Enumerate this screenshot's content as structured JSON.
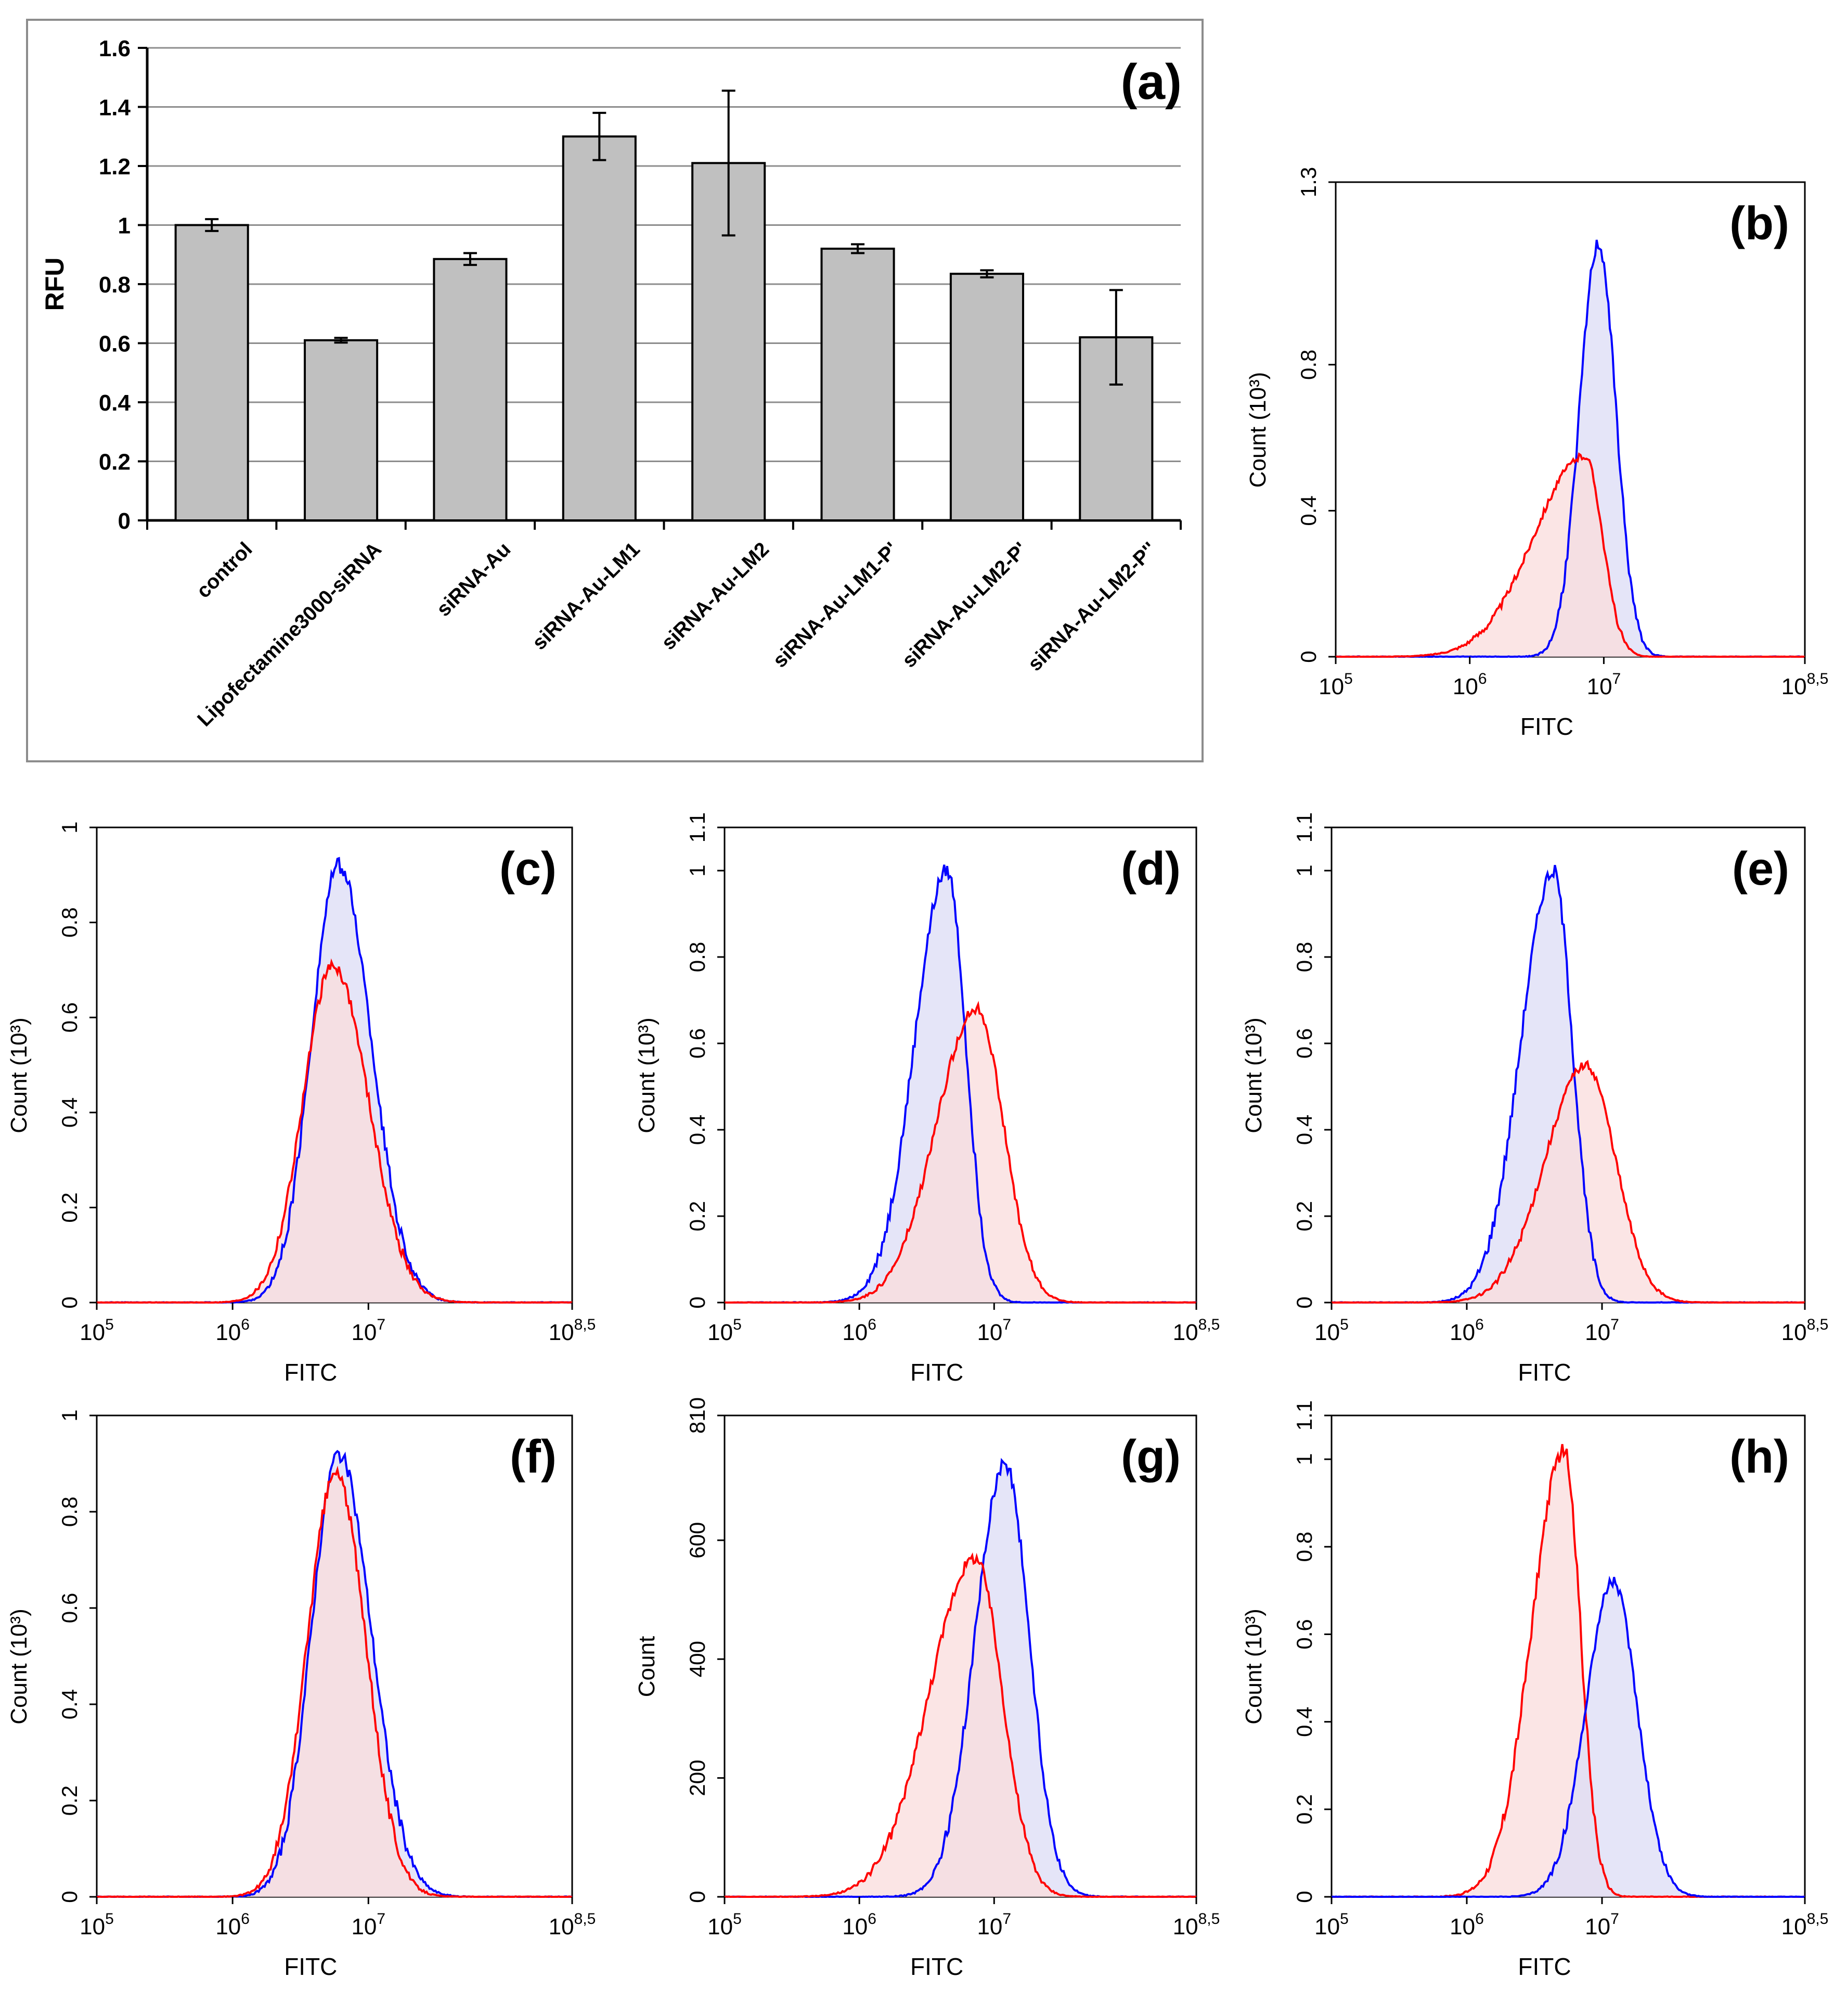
{
  "chart_data": [
    {
      "id": "a",
      "type": "bar",
      "panel_label": "(a)",
      "title": "",
      "ylabel": "RFU",
      "xlabel": "",
      "ylim": [
        0,
        1.6
      ],
      "yticks": [
        "0",
        "0.2",
        "0.4",
        "0.6",
        "0.8",
        "1",
        "1.2",
        "1.4",
        "1.6"
      ],
      "grid": true,
      "legend": "none",
      "bar_color": "#c0c0c0",
      "categories": [
        "control",
        "Lipofectamine3000-siRNA",
        "siRNA-Au",
        "siRNA-Au-LM1",
        "siRNA-Au-LM2",
        "siRNA-Au-LM1-P'",
        "siRNA-Au-LM2-P'",
        "siRNA-Au-LM2-P''"
      ],
      "values": [
        1.0,
        0.61,
        0.885,
        1.3,
        1.21,
        0.92,
        0.835,
        0.62
      ],
      "errors": [
        0.02,
        0.008,
        0.02,
        0.08,
        0.245,
        0.015,
        0.012,
        0.16
      ]
    },
    {
      "id": "b",
      "type": "area",
      "panel_label": "(b)",
      "xlabel": "FITC",
      "ylabel": "Count (10³)",
      "yticks": [
        "0",
        "0.4",
        "0.8",
        "1.3"
      ],
      "ylim": [
        0,
        1.3
      ],
      "xticks": [
        {
          "base": "10",
          "exp": "5"
        },
        {
          "base": "10",
          "exp": "6"
        },
        {
          "base": "10",
          "exp": "7"
        },
        {
          "base": "10",
          "exp": "8,5"
        }
      ],
      "xlim_log10": [
        5,
        8.5
      ],
      "legend": "none",
      "series": [
        {
          "color": "#0000ff",
          "fill": "#dcdcf5",
          "peak_log10": 6.96,
          "peak": 1.13,
          "sd_left": 0.14,
          "sd_right": 0.13
        },
        {
          "color": "#ff0000",
          "fill": "#fadcdc",
          "peak_log10": 6.86,
          "peak": 0.55,
          "sd_left": 0.38,
          "sd_right": 0.13
        }
      ]
    },
    {
      "id": "c",
      "type": "area",
      "panel_label": "(c)",
      "xlabel": "FITC",
      "ylabel": "Count (10³)",
      "yticks": [
        "0",
        "0.2",
        "0.4",
        "0.6",
        "0.8",
        "1"
      ],
      "ylim": [
        0,
        1
      ],
      "xticks": [
        {
          "base": "10",
          "exp": "5"
        },
        {
          "base": "10",
          "exp": "6"
        },
        {
          "base": "10",
          "exp": "7"
        },
        {
          "base": "10",
          "exp": "8,5"
        }
      ],
      "xlim_log10": [
        5,
        8.5
      ],
      "legend": "none",
      "series": [
        {
          "color": "#0000ff",
          "fill": "#dcdcf5",
          "peak_log10": 6.78,
          "peak": 0.92,
          "sd_left": 0.2,
          "sd_right": 0.24
        },
        {
          "color": "#ff0000",
          "fill": "#fadcdc",
          "peak_log10": 6.74,
          "peak": 0.71,
          "sd_left": 0.22,
          "sd_right": 0.26
        }
      ]
    },
    {
      "id": "d",
      "type": "area",
      "panel_label": "(d)",
      "xlabel": "FITC",
      "ylabel": "Count (10³)",
      "yticks": [
        "0",
        "0.2",
        "0.4",
        "0.6",
        "0.8",
        "1",
        "1.1"
      ],
      "ylim": [
        0,
        1.1
      ],
      "xticks": [
        {
          "base": "10",
          "exp": "5"
        },
        {
          "base": "10",
          "exp": "6"
        },
        {
          "base": "10",
          "exp": "7"
        },
        {
          "base": "10",
          "exp": "8,5"
        }
      ],
      "xlim_log10": [
        5,
        8.5
      ],
      "legend": "none",
      "series": [
        {
          "color": "#0000ff",
          "fill": "#dcdcf5",
          "peak_log10": 6.65,
          "peak": 1.0,
          "sd_left": 0.24,
          "sd_right": 0.14
        },
        {
          "color": "#ff0000",
          "fill": "#fadcdc",
          "peak_log10": 6.87,
          "peak": 0.68,
          "sd_left": 0.3,
          "sd_right": 0.2
        }
      ]
    },
    {
      "id": "e",
      "type": "area",
      "panel_label": "(e)",
      "xlabel": "FITC",
      "ylabel": "Count (10³)",
      "yticks": [
        "0",
        "0.2",
        "0.4",
        "0.6",
        "0.8",
        "1",
        "1.1"
      ],
      "ylim": [
        0,
        1.1
      ],
      "xticks": [
        {
          "base": "10",
          "exp": "5"
        },
        {
          "base": "10",
          "exp": "6"
        },
        {
          "base": "10",
          "exp": "7"
        },
        {
          "base": "10",
          "exp": "8,5"
        }
      ],
      "xlim_log10": [
        5,
        8.5
      ],
      "legend": "none",
      "series": [
        {
          "color": "#0000ff",
          "fill": "#dcdcf5",
          "peak_log10": 6.64,
          "peak": 1.0,
          "sd_left": 0.24,
          "sd_right": 0.14
        },
        {
          "color": "#ff0000",
          "fill": "#fadcdc",
          "peak_log10": 6.88,
          "peak": 0.55,
          "sd_left": 0.3,
          "sd_right": 0.22
        }
      ]
    },
    {
      "id": "f",
      "type": "area",
      "panel_label": "(f)",
      "xlabel": "FITC",
      "ylabel": "Count (10³)",
      "yticks": [
        "0",
        "0.2",
        "0.4",
        "0.6",
        "0.8",
        "1"
      ],
      "ylim": [
        0,
        1
      ],
      "xticks": [
        {
          "base": "10",
          "exp": "5"
        },
        {
          "base": "10",
          "exp": "6"
        },
        {
          "base": "10",
          "exp": "7"
        },
        {
          "base": "10",
          "exp": "8,5"
        }
      ],
      "xlim_log10": [
        5,
        8.5
      ],
      "legend": "none",
      "series": [
        {
          "color": "#0000ff",
          "fill": "#dcdcf5",
          "peak_log10": 6.78,
          "peak": 0.92,
          "sd_left": 0.2,
          "sd_right": 0.24
        },
        {
          "color": "#ff0000",
          "fill": "#fadcdc",
          "peak_log10": 6.76,
          "peak": 0.88,
          "sd_left": 0.21,
          "sd_right": 0.22
        }
      ]
    },
    {
      "id": "g",
      "type": "area",
      "panel_label": "(g)",
      "xlabel": "FITC",
      "ylabel": "Count",
      "yticks": [
        "0",
        "200",
        "400",
        "600",
        "810"
      ],
      "ylim": [
        0,
        810
      ],
      "xticks": [
        {
          "base": "10",
          "exp": "5"
        },
        {
          "base": "10",
          "exp": "6"
        },
        {
          "base": "10",
          "exp": "7"
        },
        {
          "base": "10",
          "exp": "8,5"
        }
      ],
      "xlim_log10": [
        5,
        8.5
      ],
      "legend": "none",
      "series": [
        {
          "color": "#0000ff",
          "fill": "#dcdcf5",
          "peak_log10": 7.08,
          "peak": 730,
          "sd_left": 0.22,
          "sd_right": 0.18
        },
        {
          "color": "#ff0000",
          "fill": "#fadcdc",
          "peak_log10": 6.86,
          "peak": 570,
          "sd_left": 0.34,
          "sd_right": 0.2
        }
      ]
    },
    {
      "id": "h",
      "type": "area",
      "panel_label": "(h)",
      "xlabel": "FITC",
      "ylabel": "Count (10³)",
      "yticks": [
        "0",
        "0.2",
        "0.4",
        "0.6",
        "0.8",
        "1",
        "1.1"
      ],
      "ylim": [
        0,
        1.1
      ],
      "xticks": [
        {
          "base": "10",
          "exp": "5"
        },
        {
          "base": "10",
          "exp": "6"
        },
        {
          "base": "10",
          "exp": "7"
        },
        {
          "base": "10",
          "exp": "8,5"
        }
      ],
      "xlim_log10": [
        5,
        8.5
      ],
      "legend": "none",
      "series": [
        {
          "color": "#ff0000",
          "fill": "#fadcdc",
          "peak_log10": 6.72,
          "peak": 1.02,
          "sd_left": 0.24,
          "sd_right": 0.12
        },
        {
          "color": "#0000ff",
          "fill": "#dcdcf5",
          "peak_log10": 7.08,
          "peak": 0.72,
          "sd_left": 0.2,
          "sd_right": 0.18
        }
      ]
    }
  ]
}
